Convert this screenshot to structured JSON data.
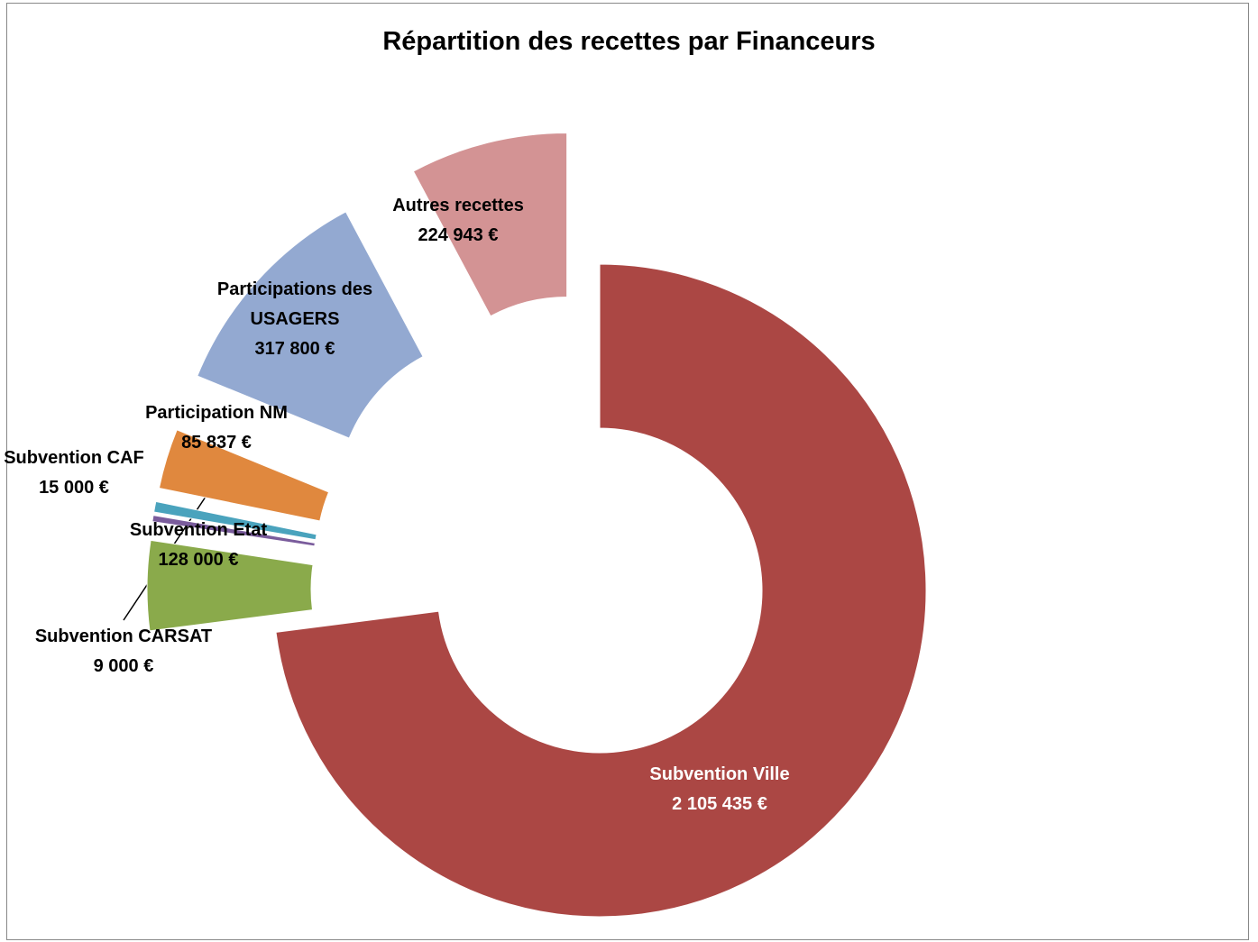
{
  "chart_data": {
    "type": "donut",
    "title": "Répartition des recettes par Financeurs",
    "categories": [
      "Subvention Ville",
      "Subvention Etat",
      "Subvention CARSAT",
      "Subvention CAF",
      "Participation NM",
      "Participations des USAGERS",
      "Autres recettes"
    ],
    "values": [
      2105435,
      128000,
      9000,
      15000,
      85837,
      317800,
      224943
    ],
    "value_labels": [
      "2 105 435 €",
      "128 000 €",
      "9 000 €",
      "15 000 €",
      "85 837 €",
      "317 800 €",
      "224 943 €"
    ],
    "colors": [
      "#ab4744",
      "#8aaa4b",
      "#7a5c9c",
      "#4aa3bd",
      "#e0883e",
      "#93a9d1",
      "#d39394"
    ]
  }
}
